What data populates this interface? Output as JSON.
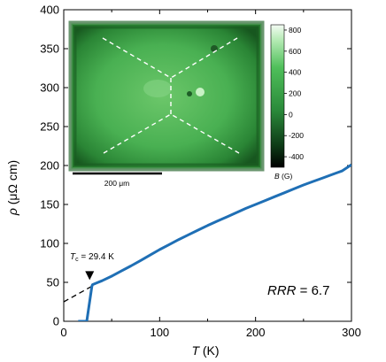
{
  "chart_data": {
    "type": "line",
    "xlabel": {
      "var": "T",
      "unit": " (K)"
    },
    "ylabel": {
      "var": "ρ",
      "unit": " (μΩ cm)"
    },
    "xlim": [
      0,
      300
    ],
    "ylim": [
      0,
      400
    ],
    "xticks": [
      "0",
      "100",
      "200",
      "300"
    ],
    "yticks": [
      "0",
      "50",
      "100",
      "150",
      "200",
      "250",
      "300",
      "350",
      "400"
    ],
    "series": [
      {
        "color": "#1f6fb5",
        "x": [
          15,
          23.5,
          24,
          29.4,
          30,
          35,
          40,
          50,
          60,
          70,
          80,
          90,
          100,
          110,
          120,
          130,
          140,
          150,
          160,
          170,
          180,
          190,
          200,
          210,
          220,
          230,
          240,
          250,
          260,
          270,
          280,
          290,
          300
        ],
        "y": [
          0,
          0,
          0,
          45,
          47,
          49.5,
          52,
          58,
          64.5,
          71,
          78,
          85,
          92,
          98.5,
          105,
          111,
          117,
          123,
          128.5,
          134,
          139.5,
          145,
          150,
          155,
          160,
          165,
          170,
          175,
          179.5,
          184,
          188.5,
          193,
          201
        ]
      },
      {
        "style": "dashed",
        "color": "#000000",
        "x": [
          0,
          29.4
        ],
        "y": [
          25,
          45
        ]
      }
    ],
    "annotations": {
      "tc_symbol": "T",
      "tc_subscript": "c",
      "tc_value": " = 29.4 K",
      "tc_x": 27,
      "rrr_label": "RRR",
      "rrr_value": " = 6.7"
    },
    "inset": {
      "colorbar_ticks": [
        "800",
        "600",
        "400",
        "200",
        "0",
        "-200",
        "-400"
      ],
      "colorbar_range": [
        -500,
        850
      ],
      "colorbar_label_var": "B",
      "colorbar_label_unit": " (G)",
      "scalebar_label": "200 μm",
      "colors": {
        "map_base": "#3fa84a",
        "map_edge": "#1f6b2a",
        "map_light": "#8fd98e",
        "lines": "#ffffff"
      }
    }
  }
}
